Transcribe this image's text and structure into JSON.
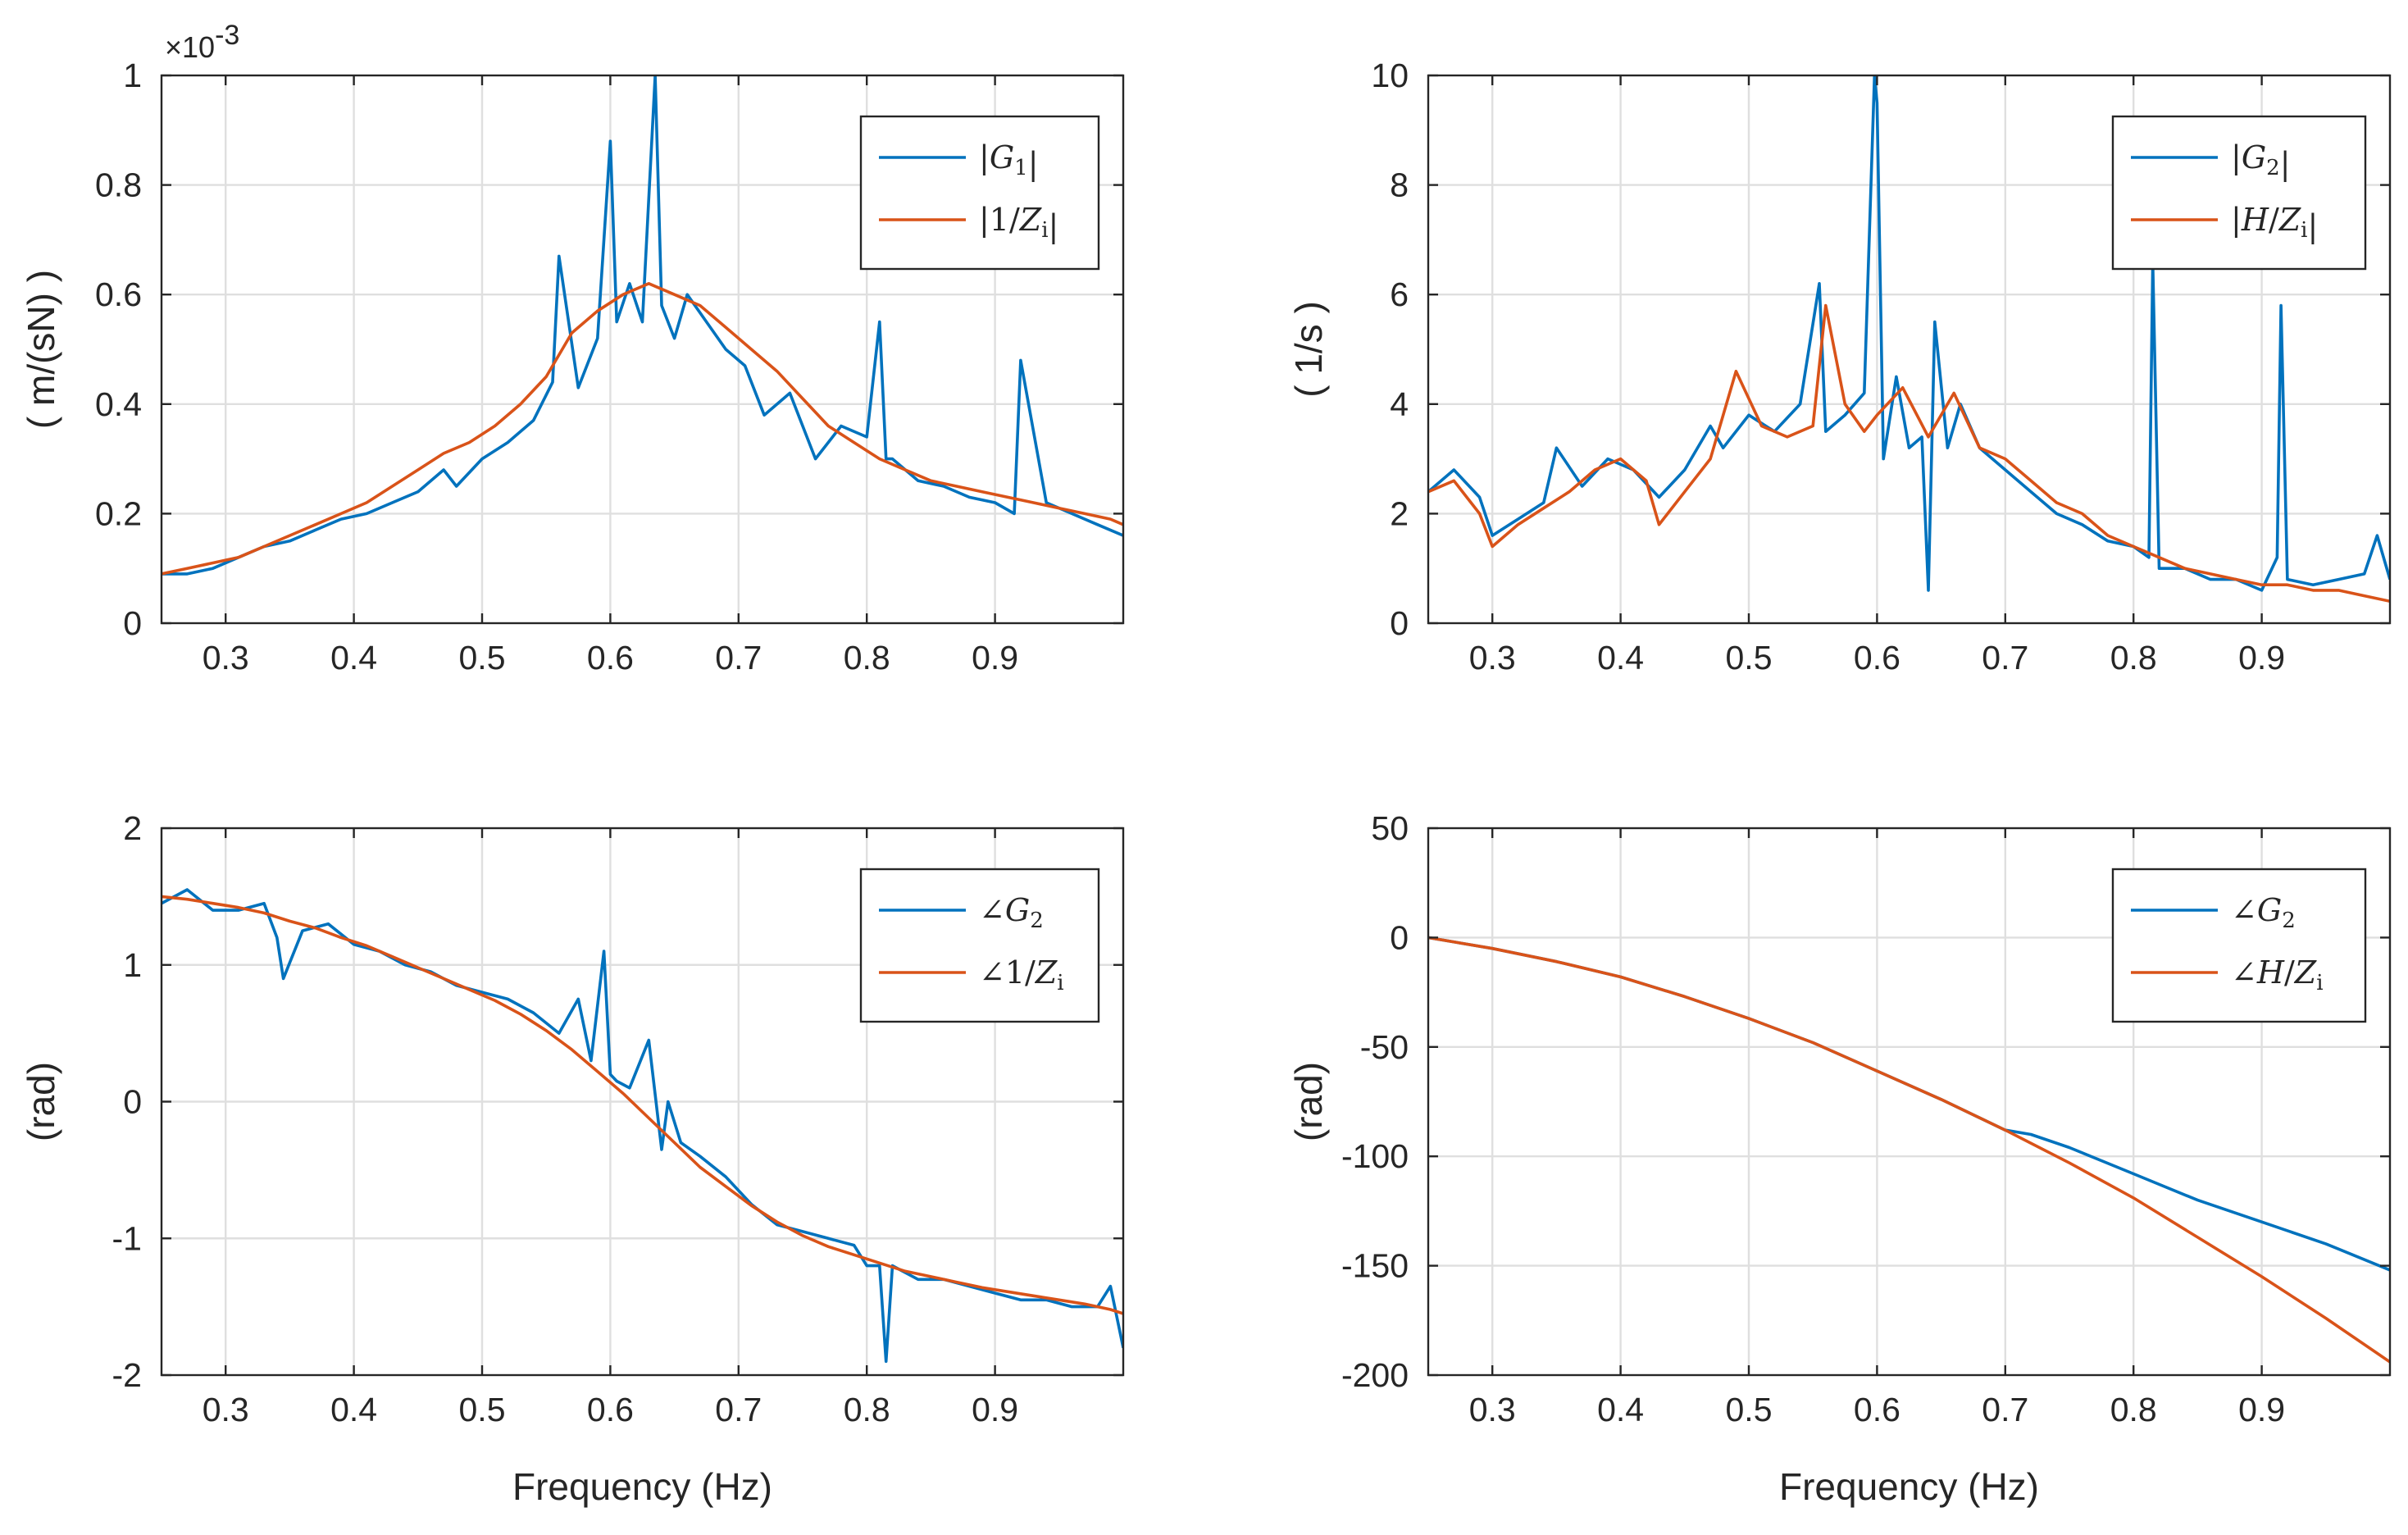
{
  "colors": {
    "series1": "#0072BD",
    "series2": "#D95319",
    "grid": "#DFDFDF",
    "axis": "#262626"
  },
  "chart_data": [
    {
      "id": "magnitude-G1",
      "type": "line",
      "title": "",
      "xlabel": "",
      "ylabel": "( m/(sN) )",
      "exponent_label": "×10-3",
      "xlim": [
        0.25,
        1.0
      ],
      "ylim": [
        0,
        1
      ],
      "xticks": [
        0.3,
        0.4,
        0.5,
        0.6,
        0.7,
        0.8,
        0.9
      ],
      "xtick_labels": [
        "0.3",
        "0.4",
        "0.5",
        "0.6",
        "0.7",
        "0.8",
        "0.9"
      ],
      "yticks": [
        0,
        0.2,
        0.4,
        0.6,
        0.8,
        1
      ],
      "ytick_labels": [
        "0",
        "0.2",
        "0.4",
        "0.6",
        "0.8",
        "1"
      ],
      "grid": true,
      "legend_position": "top-right",
      "series": [
        {
          "name": "|G1|",
          "color": "#0072BD",
          "x": [
            0.25,
            0.27,
            0.29,
            0.31,
            0.33,
            0.35,
            0.37,
            0.39,
            0.41,
            0.43,
            0.45,
            0.47,
            0.48,
            0.5,
            0.52,
            0.54,
            0.555,
            0.56,
            0.575,
            0.59,
            0.6,
            0.605,
            0.615,
            0.625,
            0.635,
            0.64,
            0.65,
            0.66,
            0.675,
            0.69,
            0.705,
            0.72,
            0.74,
            0.76,
            0.78,
            0.8,
            0.81,
            0.815,
            0.82,
            0.84,
            0.86,
            0.88,
            0.9,
            0.915,
            0.92,
            0.94,
            0.96,
            0.98,
            1.0
          ],
          "y": [
            0.09,
            0.09,
            0.1,
            0.12,
            0.14,
            0.15,
            0.17,
            0.19,
            0.2,
            0.22,
            0.24,
            0.28,
            0.25,
            0.3,
            0.33,
            0.37,
            0.44,
            0.67,
            0.43,
            0.52,
            0.88,
            0.55,
            0.62,
            0.55,
            1.0,
            0.58,
            0.52,
            0.6,
            0.55,
            0.5,
            0.47,
            0.38,
            0.42,
            0.3,
            0.36,
            0.34,
            0.55,
            0.3,
            0.3,
            0.26,
            0.25,
            0.23,
            0.22,
            0.2,
            0.48,
            0.22,
            0.2,
            0.18,
            0.16
          ]
        },
        {
          "name": "|1/Zi|",
          "color": "#D95319",
          "x": [
            0.25,
            0.27,
            0.29,
            0.31,
            0.33,
            0.35,
            0.37,
            0.39,
            0.41,
            0.43,
            0.45,
            0.47,
            0.49,
            0.51,
            0.53,
            0.55,
            0.57,
            0.59,
            0.61,
            0.63,
            0.65,
            0.67,
            0.69,
            0.71,
            0.73,
            0.75,
            0.77,
            0.79,
            0.81,
            0.83,
            0.85,
            0.87,
            0.89,
            0.91,
            0.93,
            0.95,
            0.97,
            0.99,
            1.0
          ],
          "y": [
            0.09,
            0.1,
            0.11,
            0.12,
            0.14,
            0.16,
            0.18,
            0.2,
            0.22,
            0.25,
            0.28,
            0.31,
            0.33,
            0.36,
            0.4,
            0.45,
            0.53,
            0.57,
            0.6,
            0.62,
            0.6,
            0.58,
            0.54,
            0.5,
            0.46,
            0.41,
            0.36,
            0.33,
            0.3,
            0.28,
            0.26,
            0.25,
            0.24,
            0.23,
            0.22,
            0.21,
            0.2,
            0.19,
            0.18
          ]
        }
      ]
    },
    {
      "id": "magnitude-G2",
      "type": "line",
      "title": "",
      "xlabel": "",
      "ylabel": "( 1/s )",
      "xlim": [
        0.25,
        1.0
      ],
      "ylim": [
        0,
        10
      ],
      "xticks": [
        0.3,
        0.4,
        0.5,
        0.6,
        0.7,
        0.8,
        0.9
      ],
      "xtick_labels": [
        "0.3",
        "0.4",
        "0.5",
        "0.6",
        "0.7",
        "0.8",
        "0.9"
      ],
      "yticks": [
        0,
        2,
        4,
        6,
        8,
        10
      ],
      "ytick_labels": [
        "0",
        "2",
        "4",
        "6",
        "8",
        "10"
      ],
      "grid": true,
      "legend_position": "top-right",
      "series": [
        {
          "name": "|G2|",
          "color": "#0072BD",
          "x": [
            0.25,
            0.27,
            0.29,
            0.3,
            0.32,
            0.34,
            0.35,
            0.37,
            0.39,
            0.41,
            0.43,
            0.45,
            0.47,
            0.48,
            0.5,
            0.52,
            0.54,
            0.555,
            0.56,
            0.575,
            0.59,
            0.598,
            0.6,
            0.605,
            0.615,
            0.625,
            0.635,
            0.64,
            0.645,
            0.655,
            0.665,
            0.68,
            0.7,
            0.72,
            0.74,
            0.76,
            0.78,
            0.8,
            0.812,
            0.815,
            0.82,
            0.84,
            0.86,
            0.88,
            0.9,
            0.912,
            0.915,
            0.92,
            0.94,
            0.96,
            0.98,
            0.99,
            1.0
          ],
          "y": [
            2.4,
            2.8,
            2.3,
            1.6,
            1.9,
            2.2,
            3.2,
            2.5,
            3.0,
            2.8,
            2.3,
            2.8,
            3.6,
            3.2,
            3.8,
            3.5,
            4.0,
            6.2,
            3.5,
            3.8,
            4.2,
            10.0,
            9.5,
            3.0,
            4.5,
            3.2,
            3.4,
            0.6,
            5.5,
            3.2,
            4.0,
            3.2,
            2.8,
            2.4,
            2.0,
            1.8,
            1.5,
            1.4,
            1.2,
            6.6,
            1.0,
            1.0,
            0.8,
            0.8,
            0.6,
            1.2,
            5.8,
            0.8,
            0.7,
            0.8,
            0.9,
            1.6,
            0.8
          ]
        },
        {
          "name": "|H/Zi|",
          "color": "#D95319",
          "x": [
            0.25,
            0.27,
            0.29,
            0.3,
            0.32,
            0.34,
            0.36,
            0.38,
            0.4,
            0.42,
            0.43,
            0.45,
            0.47,
            0.49,
            0.51,
            0.53,
            0.55,
            0.56,
            0.575,
            0.59,
            0.6,
            0.62,
            0.64,
            0.66,
            0.68,
            0.7,
            0.72,
            0.74,
            0.76,
            0.78,
            0.8,
            0.82,
            0.84,
            0.86,
            0.88,
            0.9,
            0.92,
            0.94,
            0.96,
            0.98,
            1.0
          ],
          "y": [
            2.4,
            2.6,
            2.0,
            1.4,
            1.8,
            2.1,
            2.4,
            2.8,
            3.0,
            2.6,
            1.8,
            2.4,
            3.0,
            4.6,
            3.6,
            3.4,
            3.6,
            5.8,
            4.0,
            3.5,
            3.8,
            4.3,
            3.4,
            4.2,
            3.2,
            3.0,
            2.6,
            2.2,
            2.0,
            1.6,
            1.4,
            1.2,
            1.0,
            0.9,
            0.8,
            0.7,
            0.7,
            0.6,
            0.6,
            0.5,
            0.4
          ]
        }
      ]
    },
    {
      "id": "phase-G2-left",
      "type": "line",
      "title": "",
      "xlabel": "Frequency (Hz)",
      "ylabel": "(rad)",
      "xlim": [
        0.25,
        1.0
      ],
      "ylim": [
        -2,
        2
      ],
      "xticks": [
        0.3,
        0.4,
        0.5,
        0.6,
        0.7,
        0.8,
        0.9
      ],
      "xtick_labels": [
        "0.3",
        "0.4",
        "0.5",
        "0.6",
        "0.7",
        "0.8",
        "0.9"
      ],
      "yticks": [
        -2,
        -1,
        0,
        1,
        2
      ],
      "ytick_labels": [
        "-2",
        "-1",
        "0",
        "1",
        "2"
      ],
      "grid": true,
      "legend_position": "top-right",
      "series": [
        {
          "name": "∠G2",
          "color": "#0072BD",
          "x": [
            0.25,
            0.27,
            0.29,
            0.31,
            0.33,
            0.34,
            0.345,
            0.36,
            0.38,
            0.4,
            0.42,
            0.44,
            0.46,
            0.48,
            0.5,
            0.52,
            0.54,
            0.56,
            0.575,
            0.585,
            0.595,
            0.6,
            0.605,
            0.615,
            0.63,
            0.64,
            0.645,
            0.655,
            0.67,
            0.69,
            0.71,
            0.73,
            0.75,
            0.77,
            0.79,
            0.8,
            0.81,
            0.815,
            0.82,
            0.84,
            0.86,
            0.88,
            0.9,
            0.92,
            0.94,
            0.96,
            0.98,
            0.99,
            1.0
          ],
          "y": [
            1.45,
            1.55,
            1.4,
            1.4,
            1.45,
            1.2,
            0.9,
            1.25,
            1.3,
            1.15,
            1.1,
            1.0,
            0.95,
            0.85,
            0.8,
            0.75,
            0.65,
            0.5,
            0.75,
            0.3,
            1.1,
            0.2,
            0.15,
            0.1,
            0.45,
            -0.35,
            0.0,
            -0.3,
            -0.4,
            -0.55,
            -0.75,
            -0.9,
            -0.95,
            -1.0,
            -1.05,
            -1.2,
            -1.2,
            -1.9,
            -1.2,
            -1.3,
            -1.3,
            -1.35,
            -1.4,
            -1.45,
            -1.45,
            -1.5,
            -1.5,
            -1.35,
            -1.8
          ]
        },
        {
          "name": "∠1/Zi",
          "color": "#D95319",
          "x": [
            0.25,
            0.27,
            0.29,
            0.31,
            0.33,
            0.35,
            0.37,
            0.39,
            0.41,
            0.43,
            0.45,
            0.47,
            0.49,
            0.51,
            0.53,
            0.55,
            0.57,
            0.59,
            0.61,
            0.63,
            0.65,
            0.67,
            0.69,
            0.71,
            0.73,
            0.75,
            0.77,
            0.79,
            0.81,
            0.83,
            0.85,
            0.87,
            0.89,
            0.91,
            0.93,
            0.95,
            0.97,
            0.99,
            1.0
          ],
          "y": [
            1.5,
            1.48,
            1.45,
            1.42,
            1.38,
            1.32,
            1.27,
            1.2,
            1.14,
            1.06,
            0.98,
            0.9,
            0.82,
            0.74,
            0.64,
            0.52,
            0.38,
            0.22,
            0.06,
            -0.12,
            -0.3,
            -0.48,
            -0.62,
            -0.76,
            -0.88,
            -0.98,
            -1.06,
            -1.12,
            -1.18,
            -1.24,
            -1.28,
            -1.32,
            -1.36,
            -1.39,
            -1.42,
            -1.45,
            -1.48,
            -1.52,
            -1.55
          ]
        }
      ]
    },
    {
      "id": "phase-G2-right",
      "type": "line",
      "title": "",
      "xlabel": "Frequency (Hz)",
      "ylabel": "(rad)",
      "xlim": [
        0.25,
        1.0
      ],
      "ylim": [
        -200,
        50
      ],
      "xticks": [
        0.3,
        0.4,
        0.5,
        0.6,
        0.7,
        0.8,
        0.9
      ],
      "xtick_labels": [
        "0.3",
        "0.4",
        "0.5",
        "0.6",
        "0.7",
        "0.8",
        "0.9"
      ],
      "yticks": [
        -200,
        -150,
        -100,
        -50,
        0,
        50
      ],
      "ytick_labels": [
        "-200",
        "-150",
        "-100",
        "-50",
        "0",
        "50"
      ],
      "grid": true,
      "legend_position": "top-right",
      "series": [
        {
          "name": "∠G2",
          "color": "#0072BD",
          "x": [
            0.25,
            0.3,
            0.35,
            0.4,
            0.45,
            0.5,
            0.55,
            0.6,
            0.65,
            0.7,
            0.72,
            0.75,
            0.8,
            0.85,
            0.9,
            0.95,
            1.0
          ],
          "y": [
            0,
            -5,
            -11,
            -18,
            -27,
            -37,
            -48,
            -61,
            -74,
            -88,
            -90,
            -96,
            -108,
            -120,
            -130,
            -140,
            -152
          ]
        },
        {
          "name": "∠H/Zi",
          "color": "#D95319",
          "x": [
            0.25,
            0.3,
            0.35,
            0.4,
            0.45,
            0.5,
            0.55,
            0.6,
            0.65,
            0.7,
            0.75,
            0.8,
            0.85,
            0.9,
            0.95,
            1.0
          ],
          "y": [
            0,
            -5,
            -11,
            -18,
            -27,
            -37,
            -48,
            -61,
            -74,
            -88,
            -103,
            -119,
            -137,
            -155,
            -174,
            -194
          ]
        }
      ]
    }
  ]
}
